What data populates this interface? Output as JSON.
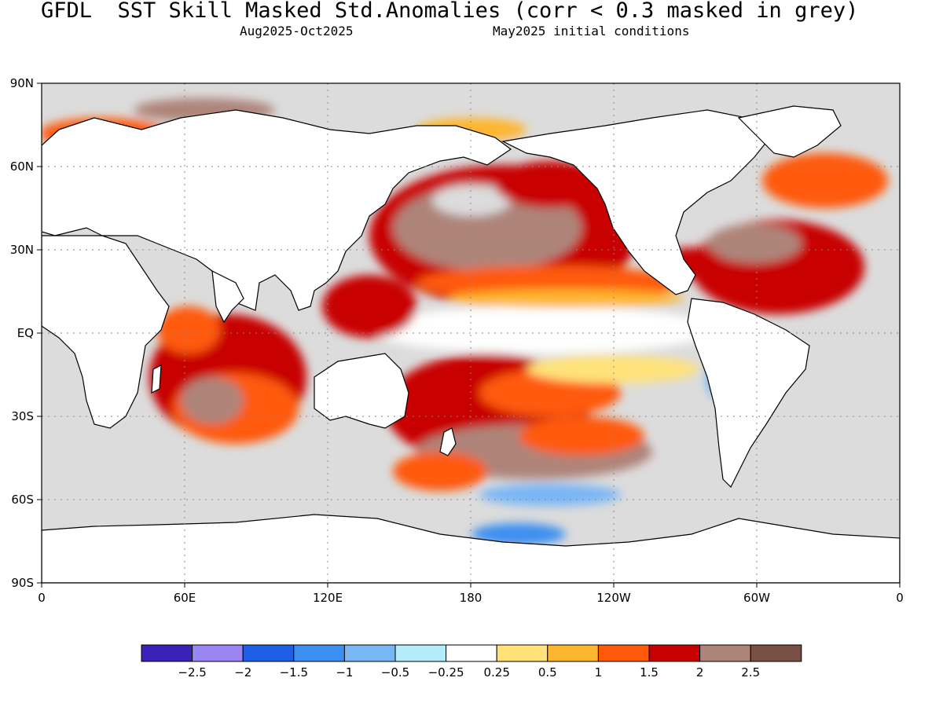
{
  "header": {
    "title": "GFDL  SST Skill Masked Std.Anomalies (corr < 0.3 masked in grey)",
    "period": "Aug2025-Oct2025",
    "init": "May2025 initial conditions"
  },
  "map": {
    "y_ticks": [
      "90N",
      "60N",
      "30N",
      "EQ",
      "30S",
      "60S",
      "90S"
    ],
    "x_ticks": [
      "0",
      "60E",
      "120E",
      "180",
      "120W",
      "60W",
      "0"
    ],
    "mask_color": "#dcdcdc",
    "land_color": "#ffffff",
    "coast_color": "#000000"
  },
  "colorbar": {
    "colors": [
      "#3a22b8",
      "#9b85f5",
      "#1e5fe6",
      "#3c8ff0",
      "#78b6f5",
      "#b4ecfa",
      "#ffffff",
      "#ffe27a",
      "#ffb52e",
      "#ff5a0a",
      "#c80000",
      "#ae8479",
      "#7a4f45"
    ],
    "labels": [
      "-2.5",
      "-2",
      "-1.5",
      "-1",
      "-0.5",
      "-0.25",
      "0.25",
      "0.5",
      "1",
      "1.5",
      "2",
      "2.5"
    ]
  }
}
